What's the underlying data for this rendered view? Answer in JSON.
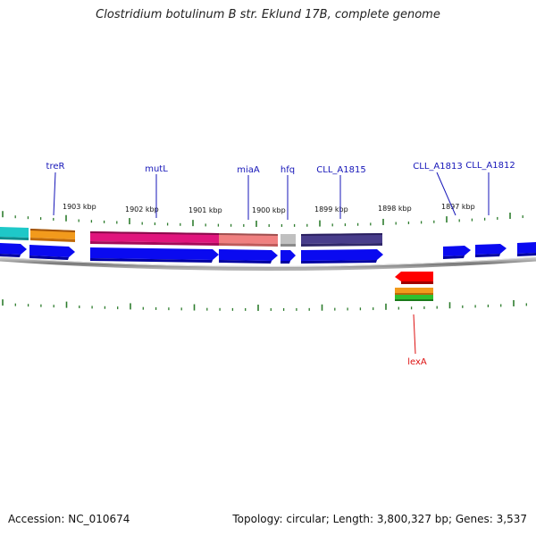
{
  "title": "Clostridium botulinum B str. Eklund 17B, complete genome",
  "footer": {
    "accession": "Accession: NC_010674",
    "summary": "Topology: circular; Length: 3,800,327 bp; Genes: 3,537"
  },
  "colors": {
    "gene_label": "#1515b8",
    "reverse_gene_label": "#dd1111",
    "cds_arrow": "#0a0af0",
    "backbone": "#808080",
    "tick": "#2e7d2e",
    "treR_feature": "#f29a1c",
    "mutL_feature": "#e0157d",
    "miaA_feature": "#f08080",
    "hfq_feature": "#b8b8b8",
    "CLL_A1815_feature": "#483d8b",
    "lexA_feature": "#ff0000",
    "cyan_feature": "#1ec8c8"
  },
  "kbp_labels": [
    "1903 kbp",
    "1902 kbp",
    "1901 kbp",
    "1900 kbp",
    "1899 kbp",
    "1898 kbp",
    "1897 kbp"
  ],
  "gene_labels": {
    "treR": "treR",
    "mutL": "mutL",
    "miaA": "miaA",
    "hfq": "hfq",
    "CLL_A1815": "CLL_A1815",
    "CLL_A1813": "CLL_A1813",
    "CLL_A1812": "CLL_A1812",
    "lexA": "lexA"
  }
}
